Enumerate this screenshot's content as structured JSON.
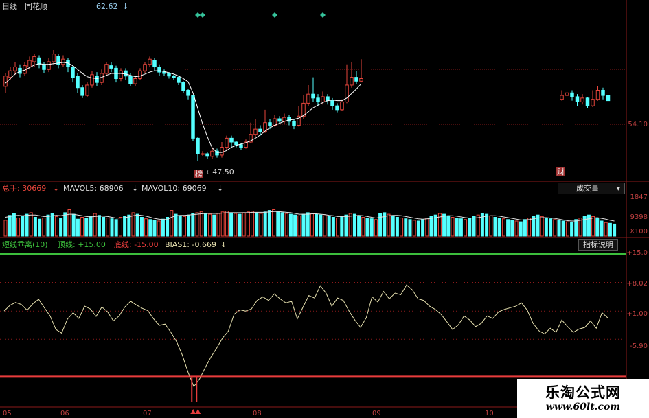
{
  "header": {
    "period_label": "日线",
    "stock_name": "同花顺",
    "price_value": "62.62",
    "price_arrow": "↓"
  },
  "price_panel": {
    "high_label": "",
    "low_label": "←47.50",
    "price_tick": "54.10",
    "marker_left": "榜",
    "marker_right": "财"
  },
  "volume_panel": {
    "total_label": "总手: 30669",
    "mavol5_label": "MAVOL5: 68906",
    "mavol10_label": "MAVOL10: 69069",
    "arrow": "↓",
    "indicator_button": "成交量",
    "axis_top": "1847",
    "axis_mid": "9398",
    "axis_unit": "X100"
  },
  "bias_panel": {
    "name_label": "短线乖离(10)",
    "top_label": "顶线: +15.00",
    "bottom_label": "底线: -15.00",
    "bias_label": "BIAS1: -0.669",
    "arrow": "↓",
    "explain_button": "指标说明",
    "ticks": [
      "+15.0",
      "+8.02",
      "+1.00",
      "-5.90"
    ]
  },
  "date_axis": [
    "05",
    "06",
    "07",
    "08",
    "09",
    "10"
  ],
  "watermark": {
    "title": "乐淘公式网",
    "url": "www.60lt.com"
  },
  "colors": {
    "up": "#e8463c",
    "down": "#54ffff",
    "grid": "#8b1a1a",
    "top_line": "#3cbe3c",
    "bottom_line": "#e83c3c",
    "bias_line": "#e8e2b0",
    "ma_line": "#ffffff",
    "signal": "#35c29a"
  },
  "chart_data": [
    {
      "type": "candlestick",
      "title": "日线 同花顺",
      "ylim": [
        45,
        70
      ],
      "candles": [
        [
          59.0,
          60.6,
          58.0,
          61.0
        ],
        [
          60.4,
          61.4,
          60.0,
          62.0
        ],
        [
          61.4,
          62.0,
          60.8,
          62.8
        ],
        [
          61.8,
          61.0,
          60.4,
          62.4
        ],
        [
          61.0,
          62.2,
          60.6,
          62.8
        ],
        [
          62.0,
          63.0,
          61.6,
          63.6
        ],
        [
          62.8,
          63.6,
          62.0,
          64.0
        ],
        [
          63.4,
          62.4,
          61.8,
          63.8
        ],
        [
          62.4,
          61.6,
          61.0,
          62.8
        ],
        [
          61.6,
          62.8,
          61.2,
          63.4
        ],
        [
          62.8,
          64.0,
          62.4,
          64.6
        ],
        [
          63.6,
          62.4,
          61.8,
          64.0
        ],
        [
          62.4,
          63.2,
          62.0,
          63.8
        ],
        [
          63.0,
          62.0,
          61.2,
          63.4
        ],
        [
          62.0,
          60.4,
          59.6,
          62.2
        ],
        [
          60.6,
          58.8,
          58.0,
          61.0
        ],
        [
          58.8,
          57.6,
          57.2,
          59.2
        ],
        [
          57.6,
          59.2,
          57.4,
          59.6
        ],
        [
          59.2,
          60.8,
          58.8,
          61.4
        ],
        [
          60.6,
          59.6,
          59.0,
          61.2
        ],
        [
          59.6,
          61.0,
          59.2,
          61.6
        ],
        [
          61.0,
          62.4,
          60.6,
          62.8
        ],
        [
          62.2,
          61.8,
          61.2,
          62.8
        ],
        [
          61.8,
          60.2,
          59.6,
          62.2
        ],
        [
          60.2,
          61.4,
          59.8,
          61.8
        ],
        [
          61.4,
          60.6,
          60.0,
          61.8
        ],
        [
          60.6,
          59.4,
          59.0,
          61.0
        ],
        [
          59.4,
          60.2,
          59.0,
          60.6
        ],
        [
          60.2,
          61.4,
          60.0,
          61.8
        ],
        [
          61.4,
          62.4,
          61.0,
          62.8
        ],
        [
          62.4,
          63.2,
          62.0,
          63.6
        ],
        [
          63.0,
          62.0,
          61.4,
          63.4
        ],
        [
          62.0,
          61.2,
          60.6,
          62.4
        ],
        [
          61.2,
          61.0,
          60.6,
          61.6
        ],
        [
          61.0,
          60.6,
          60.2,
          61.2
        ],
        [
          60.6,
          60.4,
          60.0,
          60.8
        ],
        [
          60.4,
          59.6,
          59.2,
          60.6
        ],
        [
          59.6,
          58.4,
          58.0,
          59.8
        ],
        [
          58.4,
          57.6,
          57.0,
          58.6
        ],
        [
          57.6,
          51.0,
          50.6,
          57.6
        ],
        [
          51.0,
          48.6,
          47.5,
          51.2
        ],
        [
          48.6,
          48.6,
          48.2,
          49.0
        ],
        [
          48.6,
          48.2,
          47.8,
          48.8
        ],
        [
          48.2,
          49.0,
          47.8,
          49.6
        ],
        [
          49.0,
          48.4,
          48.0,
          49.4
        ],
        [
          48.4,
          49.6,
          48.0,
          50.4
        ],
        [
          49.6,
          51.0,
          49.2,
          51.4
        ],
        [
          51.0,
          50.4,
          49.6,
          51.4
        ],
        [
          50.4,
          50.0,
          49.6,
          50.6
        ],
        [
          50.0,
          49.6,
          49.2,
          50.2
        ],
        [
          49.6,
          50.4,
          49.4,
          50.8
        ],
        [
          50.4,
          51.6,
          50.2,
          53.4
        ],
        [
          51.6,
          52.4,
          51.2,
          54.0
        ],
        [
          52.4,
          52.0,
          51.4,
          53.0
        ],
        [
          52.0,
          53.4,
          51.8,
          55.4
        ],
        [
          53.4,
          53.0,
          52.4,
          54.0
        ],
        [
          53.0,
          54.0,
          52.8,
          54.6
        ],
        [
          54.0,
          53.6,
          53.2,
          54.4
        ],
        [
          53.6,
          54.2,
          53.2,
          54.8
        ],
        [
          54.2,
          53.6,
          53.0,
          54.6
        ],
        [
          53.6,
          53.0,
          52.4,
          54.0
        ],
        [
          53.0,
          54.4,
          52.8,
          56.0
        ],
        [
          54.4,
          56.4,
          54.0,
          57.6
        ],
        [
          56.4,
          57.8,
          56.0,
          59.2
        ],
        [
          57.8,
          57.2,
          56.6,
          60.4
        ],
        [
          57.2,
          56.6,
          56.0,
          57.8
        ],
        [
          56.6,
          57.4,
          56.2,
          58.2
        ],
        [
          57.4,
          56.8,
          56.2,
          57.8
        ],
        [
          56.8,
          56.0,
          55.4,
          57.2
        ],
        [
          56.0,
          55.4,
          55.0,
          56.4
        ],
        [
          55.4,
          56.6,
          55.2,
          57.0
        ],
        [
          56.6,
          59.2,
          56.4,
          62.4
        ],
        [
          59.2,
          60.4,
          58.8,
          62.8
        ],
        [
          60.4,
          59.8,
          59.4,
          61.4
        ],
        [
          59.8,
          60.2,
          59.6,
          63.2
        ]
      ],
      "ma_line": [
        59.5,
        60.2,
        60.9,
        61.3,
        61.5,
        61.9,
        62.3,
        62.5,
        62.4,
        62.4,
        62.5,
        62.6,
        62.7,
        62.6,
        62.2,
        61.6,
        61.0,
        60.5,
        60.3,
        60.2,
        60.4,
        60.7,
        61.0,
        61.0,
        61.0,
        60.9,
        60.7,
        60.5,
        60.6,
        60.9,
        61.2,
        61.4,
        61.4,
        61.3,
        61.1,
        60.9,
        60.6,
        60.2,
        59.7,
        58.0,
        55.6,
        53.2,
        51.2,
        49.5,
        48.8,
        48.8,
        49.1,
        49.6,
        49.9,
        50.1,
        50.3,
        50.6,
        51.0,
        51.5,
        52.1,
        52.6,
        53.0,
        53.3,
        53.6,
        53.8,
        53.9,
        54.1,
        54.5,
        55.1,
        55.7,
        56.1,
        56.5,
        56.8,
        56.9,
        56.8,
        56.8,
        57.2,
        57.9,
        58.6,
        59.4
      ],
      "right_segment": [
        [
          57.0,
          57.6,
          56.8,
          58.4
        ],
        [
          57.6,
          58.0,
          57.0,
          58.6
        ],
        [
          58.0,
          57.4,
          56.8,
          58.4
        ],
        [
          57.4,
          56.6,
          56.0,
          57.8
        ],
        [
          56.6,
          57.2,
          56.2,
          57.8
        ],
        [
          57.2,
          56.0,
          55.6,
          57.4
        ],
        [
          56.0,
          57.0,
          55.8,
          58.4
        ],
        [
          57.0,
          58.4,
          56.8,
          59.0
        ],
        [
          58.4,
          57.6,
          57.0,
          58.8
        ],
        [
          57.6,
          56.8,
          56.4,
          57.8
        ]
      ],
      "signal_markers": [
        {
          "index": 40
        },
        {
          "index": 41
        },
        {
          "index": 56
        },
        {
          "index": 66
        }
      ]
    },
    {
      "type": "bar",
      "title": "成交量",
      "series": [
        {
          "name": "总手",
          "values": [
            42,
            55,
            60,
            48,
            52,
            58,
            62,
            50,
            45,
            48,
            56,
            60,
            52,
            48,
            62,
            70,
            58,
            45,
            50,
            48,
            52,
            60,
            55,
            50,
            48,
            46,
            44,
            50,
            52,
            56,
            62,
            58,
            50,
            46,
            44,
            42,
            40,
            45,
            50,
            68,
            58,
            54,
            52,
            56,
            60,
            62,
            65,
            60,
            58,
            56,
            60,
            64,
            66,
            62,
            60,
            58,
            62,
            64,
            66,
            62,
            60,
            64,
            68,
            70,
            66,
            62,
            60,
            58,
            56,
            54,
            58,
            62,
            60,
            58,
            56,
            54,
            52,
            50,
            48,
            52,
            56,
            60,
            58,
            54,
            50,
            48,
            46,
            44,
            60,
            62,
            58,
            54,
            50,
            48,
            46,
            44,
            42,
            40,
            44,
            48,
            52,
            56,
            60,
            58,
            54,
            50,
            48,
            46,
            44,
            48,
            52,
            56,
            60,
            58,
            54,
            50,
            48,
            46,
            44,
            42,
            40,
            38,
            44,
            48,
            52,
            56,
            52,
            48,
            46,
            44,
            42,
            40,
            38,
            36,
            44,
            48,
            52,
            56,
            52,
            48,
            40,
            36,
            34,
            32
          ]
        },
        {
          "name": "MAVOL5",
          "values": [
            50,
            52,
            54,
            55,
            54,
            55,
            56,
            56,
            54,
            52,
            52,
            54,
            55,
            54,
            56,
            58,
            58,
            56,
            54,
            52,
            51,
            52,
            53,
            53,
            52,
            50,
            48,
            48,
            49,
            51,
            54,
            56,
            55,
            53,
            50,
            47,
            45,
            44,
            44,
            50,
            54,
            55,
            55,
            56,
            57,
            58,
            59,
            60,
            60,
            60,
            60,
            61,
            62,
            62,
            62,
            62,
            62,
            62,
            63,
            63,
            63,
            63,
            64,
            65,
            65,
            64,
            63,
            62,
            60,
            58,
            58,
            58,
            59,
            59,
            58,
            57,
            55,
            54,
            52,
            52,
            52,
            53,
            54,
            55,
            54,
            52,
            50,
            48,
            50,
            52,
            54,
            55,
            55,
            54,
            52,
            50,
            48,
            46,
            45,
            46,
            47,
            49,
            51,
            53,
            54,
            54,
            53,
            51,
            49,
            48,
            48,
            49,
            51,
            53,
            54,
            54,
            53,
            51,
            49,
            47,
            45,
            43,
            43,
            44,
            46,
            48,
            49,
            49,
            48,
            47,
            45,
            43,
            41,
            40,
            40,
            42,
            44,
            46,
            48,
            49,
            47,
            45,
            42,
            40
          ]
        }
      ],
      "ylabel": "X100"
    },
    {
      "type": "line",
      "title": "短线乖离(10)",
      "ylim": [
        -22,
        16
      ],
      "ticks": [
        15.0,
        8.02,
        1.0,
        -5.9
      ],
      "reference_lines": [
        {
          "name": "顶线",
          "value": 15.0
        },
        {
          "name": "底线",
          "value": -15.0
        }
      ],
      "series": [
        {
          "name": "BIAS1",
          "values": [
            1.0,
            2.4,
            3.1,
            2.6,
            1.2,
            2.8,
            3.9,
            1.8,
            -0.2,
            -3.5,
            -4.4,
            -1.0,
            0.6,
            -0.8,
            2.2,
            1.5,
            -0.3,
            2.0,
            0.8,
            -1.4,
            -0.2,
            2.0,
            3.4,
            2.5,
            1.7,
            1.1,
            -0.9,
            -2.5,
            -2.2,
            -4.2,
            -6.5,
            -9.8,
            -14.0,
            -17.5,
            -15.6,
            -12.8,
            -10.2,
            -8.0,
            -5.6,
            -3.9,
            0.2,
            1.3,
            1.0,
            1.5,
            3.6,
            4.5,
            3.6,
            5.2,
            4.0,
            3.0,
            3.4,
            -0.9,
            2.0,
            4.8,
            4.2,
            7.2,
            5.4,
            2.2,
            4.2,
            3.6,
            1.0,
            -1.2,
            -3.0,
            -0.6,
            4.5,
            3.2,
            5.8,
            4.0,
            5.4,
            5.0,
            7.4,
            6.2,
            4.0,
            3.6,
            2.2,
            1.4,
            0.2,
            -1.6,
            -3.5,
            -2.4,
            -0.2,
            -1.2,
            -2.8,
            -2.0,
            -0.2,
            -0.8,
            0.8,
            1.4,
            1.8,
            2.2,
            3.0,
            1.2,
            -2.0,
            -3.8,
            -4.6,
            -3.2,
            -4.2,
            -1.2,
            -2.8,
            -4.2,
            -3.4,
            -3.0,
            -1.4,
            -3.2,
            0.6,
            -0.669
          ]
        }
      ]
    }
  ]
}
